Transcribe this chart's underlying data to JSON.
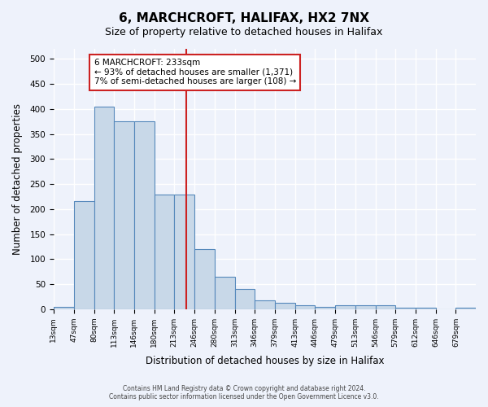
{
  "title1": "6, MARCHCROFT, HALIFAX, HX2 7NX",
  "title2": "Size of property relative to detached houses in Halifax",
  "xlabel": "Distribution of detached houses by size in Halifax",
  "ylabel": "Number of detached properties",
  "footer1": "Contains HM Land Registry data © Crown copyright and database right 2024.",
  "footer2": "Contains public sector information licensed under the Open Government Licence v3.0.",
  "annotation_line1": "6 MARCHCROFT: 233sqm",
  "annotation_line2": "← 93% of detached houses are smaller (1,371)",
  "annotation_line3": "7% of semi-detached houses are larger (108) →",
  "marker_value": 233,
  "bar_edges": [
    13,
    47,
    80,
    113,
    146,
    180,
    213,
    246,
    280,
    313,
    346,
    379,
    413,
    446,
    479,
    513,
    546,
    579,
    612,
    646,
    679,
    712
  ],
  "bar_heights": [
    4,
    216,
    405,
    375,
    375,
    229,
    229,
    120,
    65,
    40,
    17,
    13,
    7,
    5,
    7,
    7,
    7,
    3,
    3,
    0,
    3
  ],
  "bar_color": "#c8d8e8",
  "bar_edge_color": "#5588bb",
  "marker_color": "#cc2222",
  "ylim": [
    0,
    520
  ],
  "yticks": [
    0,
    50,
    100,
    150,
    200,
    250,
    300,
    350,
    400,
    450,
    500
  ],
  "background_color": "#eef2fb",
  "grid_color": "#ffffff",
  "annotation_box_color": "#ffffff",
  "annotation_box_edge": "#cc2222"
}
